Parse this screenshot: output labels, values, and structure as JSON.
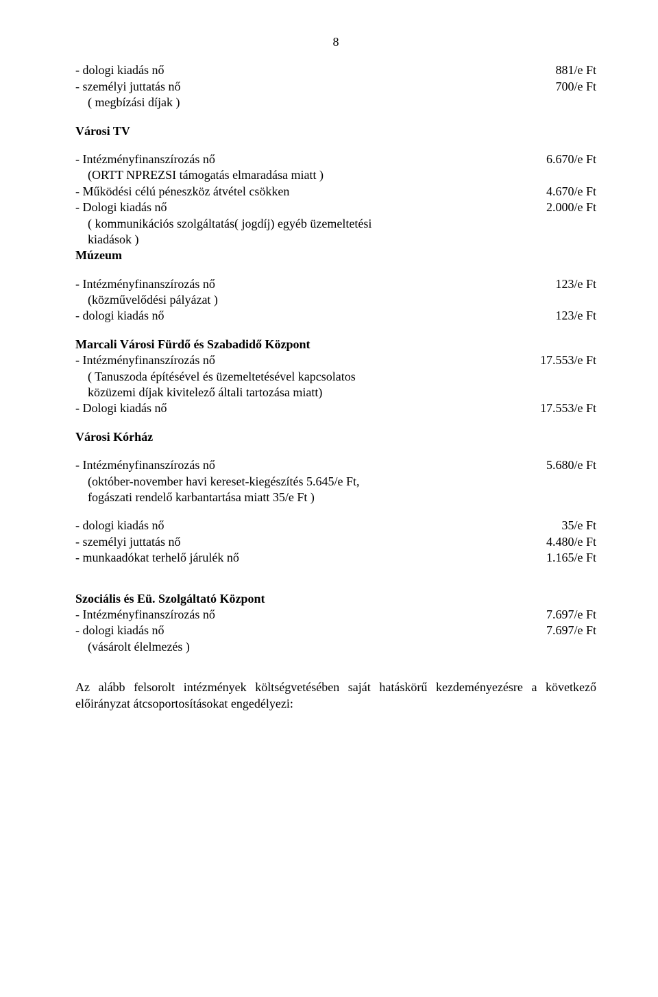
{
  "page_number": "8",
  "colors": {
    "text": "#000000",
    "background": "#ffffff"
  },
  "typography": {
    "font_family": "Times New Roman",
    "base_size_pt": 14
  },
  "block1": {
    "l1": {
      "label": "- dologi kiadás nő",
      "value": "881/e Ft"
    },
    "l2": {
      "label": "- személyi juttatás nő",
      "value": "700/e Ft"
    },
    "l3": {
      "label": "( megbízási díjak )"
    }
  },
  "varosi_tv": {
    "heading": "Városi TV",
    "l1": {
      "label": "- Intézményfinanszírozás nő",
      "value": "6.670/e Ft"
    },
    "l2": {
      "label": "(ORTT NPREZSI támogatás elmaradása miatt  )"
    },
    "l3": {
      "label": "- Működési célú péneszköz átvétel csökken",
      "value": "4.670/e Ft"
    },
    "l4": {
      "label": "- Dologi kiadás nő",
      "value": "2.000/e Ft"
    },
    "l5": {
      "label": "( kommunikációs szolgáltatás( jogdíj) egyéb üzemeltetési"
    },
    "l6": {
      "label": "kiadások )"
    }
  },
  "muzeum": {
    "heading": "Múzeum",
    "l1": {
      "label": "- Intézményfinanszírozás nő",
      "value": "123/e Ft"
    },
    "l2": {
      "label": "(közművelődési pályázat )"
    },
    "l3": {
      "label": "- dologi kiadás nő",
      "value": "123/e Ft"
    }
  },
  "furdo": {
    "heading": "Marcali Városi Fürdő és Szabadidő Központ",
    "l1": {
      "label": "- Intézményfinanszírozás nő",
      "value": "17.553/e Ft"
    },
    "l2": {
      "label": "( Tanuszoda építésével és üzemeltetésével kapcsolatos"
    },
    "l3": {
      "label": "közüzemi díjak kivitelező általi tartozása miatt)"
    },
    "l4": {
      "label": "- Dologi kiadás nő",
      "value": "17.553/e Ft"
    }
  },
  "korhaz": {
    "heading": "Városi Kórház",
    "l1": {
      "label": "- Intézményfinanszírozás nő",
      "value": "5.680/e Ft"
    },
    "l2": {
      "label": "(október-november havi kereset-kiegészítés 5.645/e Ft,"
    },
    "l3": {
      "label": "fogászati rendelő  karbantartása miatt 35/e Ft )"
    },
    "l4": {
      "label": "- dologi kiadás nő",
      "value": "35/e Ft"
    },
    "l5": {
      "label": "- személyi juttatás nő",
      "value": "4.480/e Ft"
    },
    "l6": {
      "label": "- munkaadókat terhelő járulék nő",
      "value": "1.165/e Ft"
    }
  },
  "szoc": {
    "heading": "Szociális és Eü. Szolgáltató Központ",
    "l1": {
      "label": "- Intézményfinanszírozás nő",
      "value": "7.697/e Ft"
    },
    "l2": {
      "label": "- dologi kiadás nő",
      "value": "7.697/e Ft"
    },
    "l3": {
      "label": "(vásárolt élelmezés )"
    }
  },
  "footer_para": "Az alább felsorolt intézmények költségvetésében saját hatáskörű kezdeményezésre a következő előirányzat átcsoportosításokat engedélyezi:"
}
